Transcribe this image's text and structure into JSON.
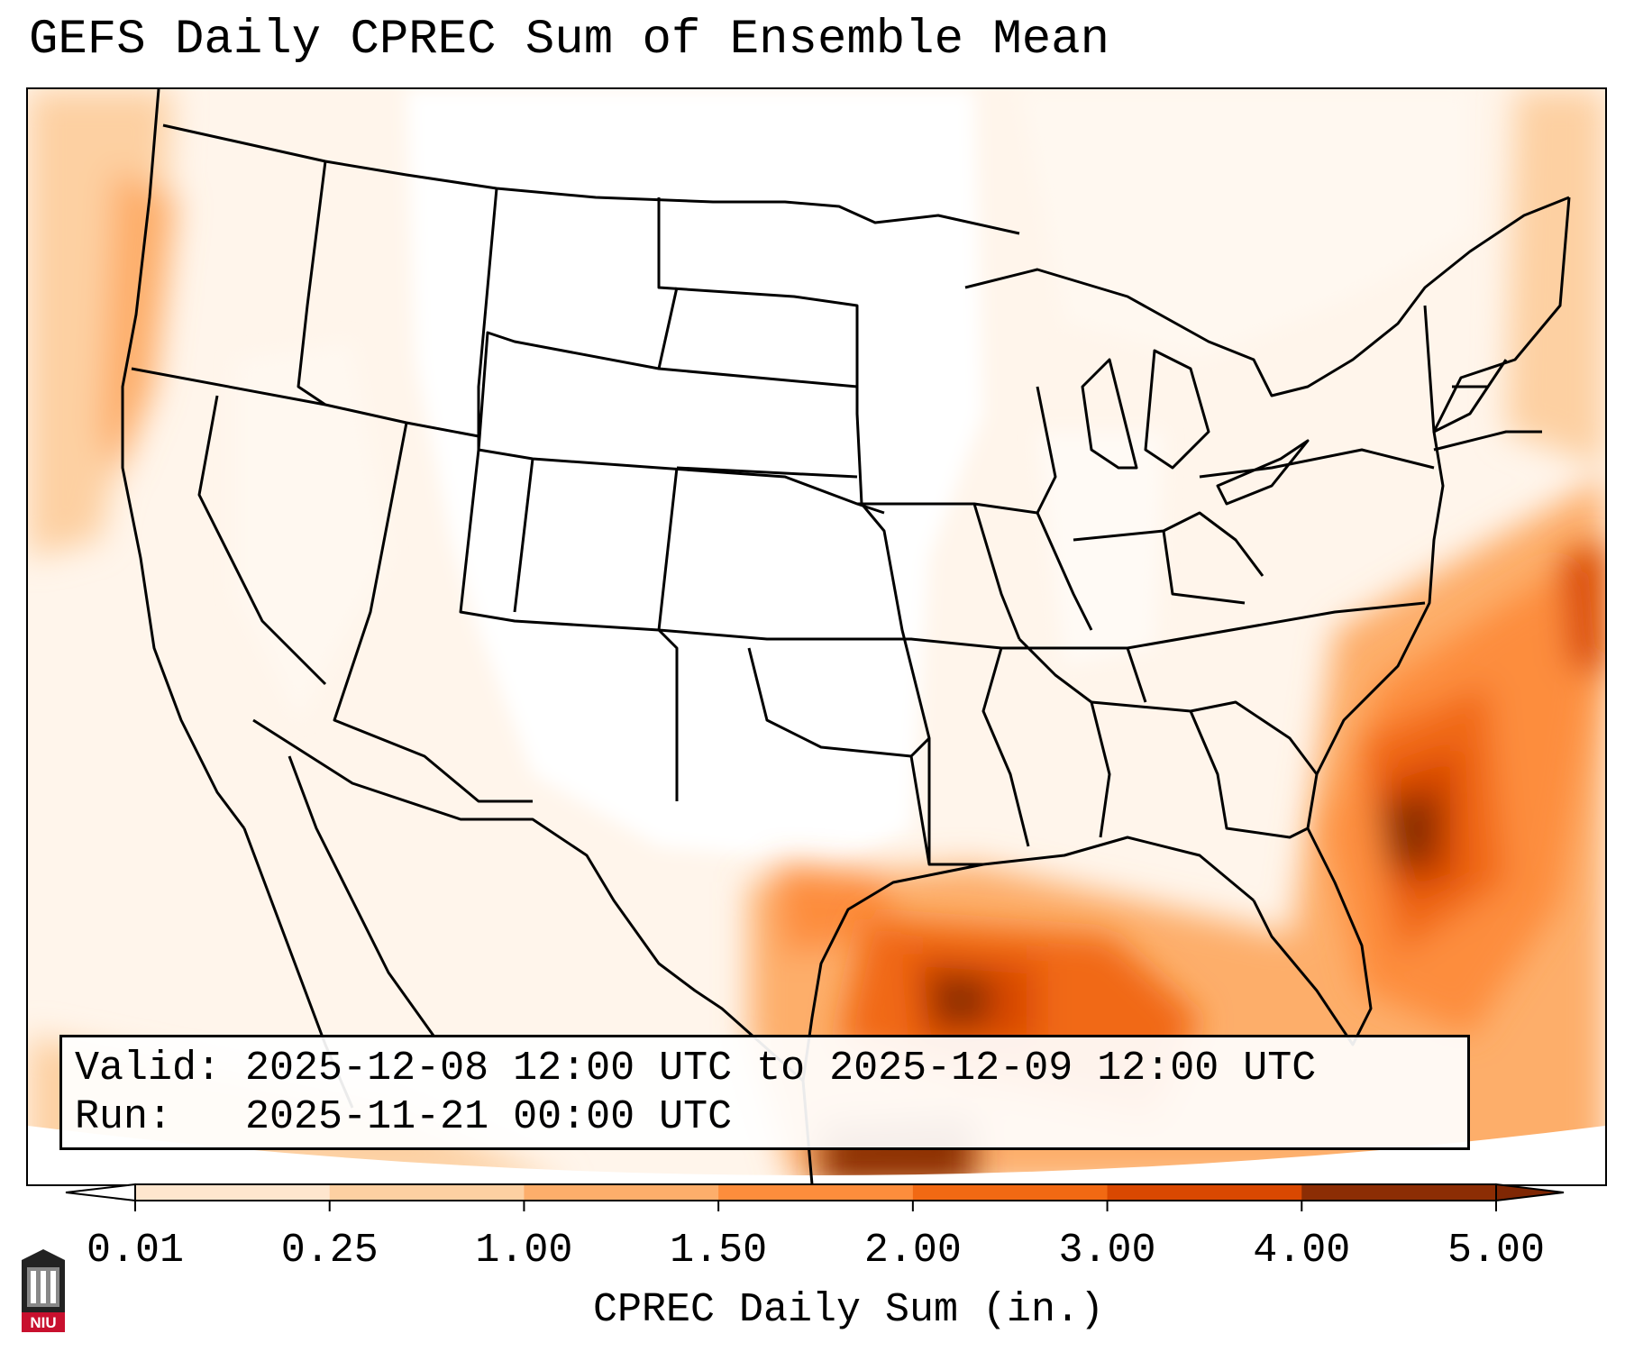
{
  "title": "GEFS Daily CPREC Sum of Ensemble Mean",
  "info": {
    "valid_label": "Valid:",
    "valid_value": "2025-12-08 12:00 UTC to 2025-12-09 12:00 UTC",
    "run_label": "Run:",
    "run_value": "2025-11-21 00:00 UTC"
  },
  "colorbar": {
    "label": "CPREC Daily Sum (in.)",
    "ticks": [
      "0.01",
      "0.25",
      "1.00",
      "1.50",
      "2.00",
      "3.00",
      "4.00",
      "5.00"
    ],
    "colors": [
      "#fff5eb",
      "#fee6ce",
      "#fdd0a2",
      "#fdae6b",
      "#fd8d3c",
      "#f16913",
      "#d94801",
      "#8c2d04"
    ],
    "extend_low_color": "#ffffff",
    "extend_high_color": "#7f2704"
  },
  "logo": {
    "text": "NIU",
    "color": "#c8102e"
  }
}
